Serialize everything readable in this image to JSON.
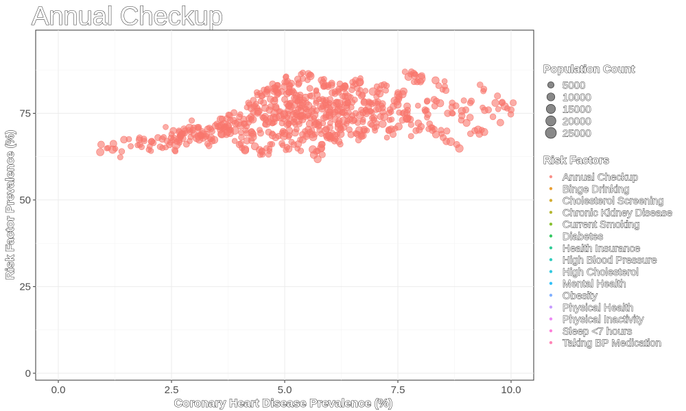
{
  "chart_data": {
    "type": "scatter",
    "title": "Annual Checkup",
    "xlabel": "Coronary Heart Disease Prevalence (%)",
    "ylabel": "Risk Factor Prevalence (%)",
    "xlim": [
      -0.5,
      10.5
    ],
    "ylim": [
      -2,
      99
    ],
    "x_ticks": [
      "0.0",
      "2.5",
      "5.0",
      "7.5",
      "10.0"
    ],
    "x_tick_values": [
      0,
      2.5,
      5,
      7.5,
      10
    ],
    "y_ticks": [
      "0",
      "25",
      "50",
      "75"
    ],
    "y_tick_values": [
      0,
      25,
      50,
      75
    ],
    "grid": true,
    "legend_position": "right",
    "point_color": "#F8766D",
    "size_legend": {
      "title": "Population Count",
      "labels": [
        "5000",
        "10000",
        "15000",
        "20000",
        "25000"
      ],
      "values": [
        5000,
        10000,
        15000,
        20000,
        25000
      ]
    },
    "color_legend": {
      "title": "Risk Factors",
      "items": [
        {
          "label": "Annual Checkup",
          "color": "#F8766D"
        },
        {
          "label": "Binge Drinking",
          "color": "#E58700"
        },
        {
          "label": "Cholesterol Screening",
          "color": "#C99800"
        },
        {
          "label": "Chronic Kidney Disease",
          "color": "#A3A500"
        },
        {
          "label": "Current Smoking",
          "color": "#6BB100"
        },
        {
          "label": "Diabetes",
          "color": "#00BA38"
        },
        {
          "label": "Health Insurance",
          "color": "#00BF7D"
        },
        {
          "label": "High Blood Pressure",
          "color": "#00C0AF"
        },
        {
          "label": "High Cholesterol",
          "color": "#00BCD8"
        },
        {
          "label": "Mental Health",
          "color": "#00B0F6"
        },
        {
          "label": "Obesity",
          "color": "#619CFF"
        },
        {
          "label": "Physical Health",
          "color": "#B983FF"
        },
        {
          "label": "Physical Inactivity",
          "color": "#E76BF3"
        },
        {
          "label": "Sleep <7 hours",
          "color": "#FD61D1"
        },
        {
          "label": "Taking BP Medication",
          "color": "#FF67A4"
        }
      ]
    },
    "points": [
      {
        "x": 1.1,
        "y": 65,
        "pop": 3000
      },
      {
        "x": 1.2,
        "y": 64.5,
        "pop": 9000
      },
      {
        "x": 1.4,
        "y": 64,
        "pop": 4000
      },
      {
        "x": 1.6,
        "y": 65.5,
        "pop": 3000
      },
      {
        "x": 1.8,
        "y": 66,
        "pop": 4000
      },
      {
        "x": 1.9,
        "y": 67,
        "pop": 3000
      },
      {
        "x": 2.0,
        "y": 64.5,
        "pop": 3000
      },
      {
        "x": 2.1,
        "y": 66.5,
        "pop": 4000
      },
      {
        "x": 2.2,
        "y": 68,
        "pop": 5000
      },
      {
        "x": 2.3,
        "y": 65,
        "pop": 3000
      },
      {
        "x": 2.4,
        "y": 67,
        "pop": 4000
      },
      {
        "x": 2.5,
        "y": 69,
        "pop": 3000
      },
      {
        "x": 2.6,
        "y": 66,
        "pop": 14000
      },
      {
        "x": 2.7,
        "y": 68.5,
        "pop": 5000
      },
      {
        "x": 2.8,
        "y": 70,
        "pop": 4000
      },
      {
        "x": 2.9,
        "y": 67,
        "pop": 3000
      },
      {
        "x": 3.0,
        "y": 69,
        "pop": 6000
      },
      {
        "x": 3.1,
        "y": 71,
        "pop": 4000
      },
      {
        "x": 3.2,
        "y": 68,
        "pop": 9000
      },
      {
        "x": 3.3,
        "y": 70.5,
        "pop": 5000
      },
      {
        "x": 3.4,
        "y": 67,
        "pop": 4000
      },
      {
        "x": 3.5,
        "y": 72,
        "pop": 3000
      },
      {
        "x": 3.6,
        "y": 69,
        "pop": 7000
      },
      {
        "x": 3.7,
        "y": 71,
        "pop": 5000
      },
      {
        "x": 3.8,
        "y": 73,
        "pop": 4000
      },
      {
        "x": 3.9,
        "y": 70,
        "pop": 9000
      },
      {
        "x": 4.0,
        "y": 74,
        "pop": 4000
      },
      {
        "x": 4.0,
        "y": 66,
        "pop": 6000
      },
      {
        "x": 4.1,
        "y": 72,
        "pop": 5000
      },
      {
        "x": 4.2,
        "y": 78,
        "pop": 4000
      },
      {
        "x": 4.3,
        "y": 69,
        "pop": 6000
      },
      {
        "x": 4.4,
        "y": 75,
        "pop": 5000
      },
      {
        "x": 4.5,
        "y": 80,
        "pop": 4000
      },
      {
        "x": 4.5,
        "y": 64,
        "pop": 7000
      },
      {
        "x": 4.6,
        "y": 72,
        "pop": 9000
      },
      {
        "x": 4.7,
        "y": 77,
        "pop": 5000
      },
      {
        "x": 4.8,
        "y": 82,
        "pop": 4000
      },
      {
        "x": 4.8,
        "y": 68,
        "pop": 6000
      },
      {
        "x": 4.9,
        "y": 74,
        "pop": 12000
      },
      {
        "x": 5.0,
        "y": 79,
        "pop": 5000
      },
      {
        "x": 5.0,
        "y": 84,
        "pop": 4000
      },
      {
        "x": 5.1,
        "y": 70,
        "pop": 7000
      },
      {
        "x": 5.1,
        "y": 76,
        "pop": 9000
      },
      {
        "x": 5.2,
        "y": 81,
        "pop": 5000
      },
      {
        "x": 5.2,
        "y": 66,
        "pop": 4000
      },
      {
        "x": 5.3,
        "y": 73,
        "pop": 12000
      },
      {
        "x": 5.4,
        "y": 78,
        "pop": 6000
      },
      {
        "x": 5.4,
        "y": 85,
        "pop": 4000
      },
      {
        "x": 5.5,
        "y": 69,
        "pop": 5000
      },
      {
        "x": 5.5,
        "y": 75,
        "pop": 14000
      },
      {
        "x": 5.6,
        "y": 80,
        "pop": 6000
      },
      {
        "x": 5.7,
        "y": 72,
        "pop": 8000
      },
      {
        "x": 5.7,
        "y": 64,
        "pop": 5000
      },
      {
        "x": 5.8,
        "y": 77,
        "pop": 7000
      },
      {
        "x": 5.9,
        "y": 83,
        "pop": 5000
      },
      {
        "x": 5.9,
        "y": 70,
        "pop": 9000
      },
      {
        "x": 6.0,
        "y": 74,
        "pop": 6000
      },
      {
        "x": 6.0,
        "y": 79,
        "pop": 5000
      },
      {
        "x": 6.1,
        "y": 67,
        "pop": 4000
      },
      {
        "x": 6.2,
        "y": 76,
        "pop": 12000
      },
      {
        "x": 6.2,
        "y": 82,
        "pop": 5000
      },
      {
        "x": 6.3,
        "y": 71,
        "pop": 6000
      },
      {
        "x": 6.4,
        "y": 78,
        "pop": 5000
      },
      {
        "x": 6.5,
        "y": 84,
        "pop": 4000
      },
      {
        "x": 6.5,
        "y": 73,
        "pop": 9000
      },
      {
        "x": 6.6,
        "y": 69,
        "pop": 5000
      },
      {
        "x": 6.7,
        "y": 80,
        "pop": 6000
      },
      {
        "x": 6.8,
        "y": 75,
        "pop": 7000
      },
      {
        "x": 6.9,
        "y": 72,
        "pop": 5000
      },
      {
        "x": 7.0,
        "y": 78,
        "pop": 6000
      },
      {
        "x": 7.1,
        "y": 82,
        "pop": 4000
      },
      {
        "x": 7.2,
        "y": 74,
        "pop": 9000
      },
      {
        "x": 7.3,
        "y": 70,
        "pop": 5000
      },
      {
        "x": 7.4,
        "y": 77,
        "pop": 6000
      },
      {
        "x": 7.5,
        "y": 81,
        "pop": 4000
      },
      {
        "x": 7.6,
        "y": 73,
        "pop": 5000
      },
      {
        "x": 7.7,
        "y": 75,
        "pop": 6000
      },
      {
        "x": 7.8,
        "y": 87,
        "pop": 4000
      },
      {
        "x": 7.9,
        "y": 70,
        "pop": 5000
      },
      {
        "x": 8.0,
        "y": 85,
        "pop": 18000
      },
      {
        "x": 8.1,
        "y": 76,
        "pop": 5000
      },
      {
        "x": 8.2,
        "y": 72,
        "pop": 4000
      },
      {
        "x": 8.3,
        "y": 79,
        "pop": 5000
      },
      {
        "x": 8.4,
        "y": 83,
        "pop": 4000
      },
      {
        "x": 8.5,
        "y": 68,
        "pop": 5000
      },
      {
        "x": 8.6,
        "y": 75,
        "pop": 6000
      },
      {
        "x": 8.7,
        "y": 78,
        "pop": 4000
      },
      {
        "x": 8.8,
        "y": 66,
        "pop": 5000
      },
      {
        "x": 8.9,
        "y": 73,
        "pop": 4000
      },
      {
        "x": 9.0,
        "y": 76,
        "pop": 5000
      },
      {
        "x": 9.1,
        "y": 78,
        "pop": 4000
      },
      {
        "x": 9.2,
        "y": 70,
        "pop": 5000
      },
      {
        "x": 9.3,
        "y": 69,
        "pop": 6000
      },
      {
        "x": 9.4,
        "y": 82,
        "pop": 4000
      },
      {
        "x": 9.5,
        "y": 76,
        "pop": 5000
      },
      {
        "x": 9.6,
        "y": 74,
        "pop": 4000
      },
      {
        "x": 9.7,
        "y": 80,
        "pop": 5000
      },
      {
        "x": 9.8,
        "y": 78,
        "pop": 4000
      },
      {
        "x": 10.0,
        "y": 76,
        "pop": 5000
      }
    ]
  }
}
